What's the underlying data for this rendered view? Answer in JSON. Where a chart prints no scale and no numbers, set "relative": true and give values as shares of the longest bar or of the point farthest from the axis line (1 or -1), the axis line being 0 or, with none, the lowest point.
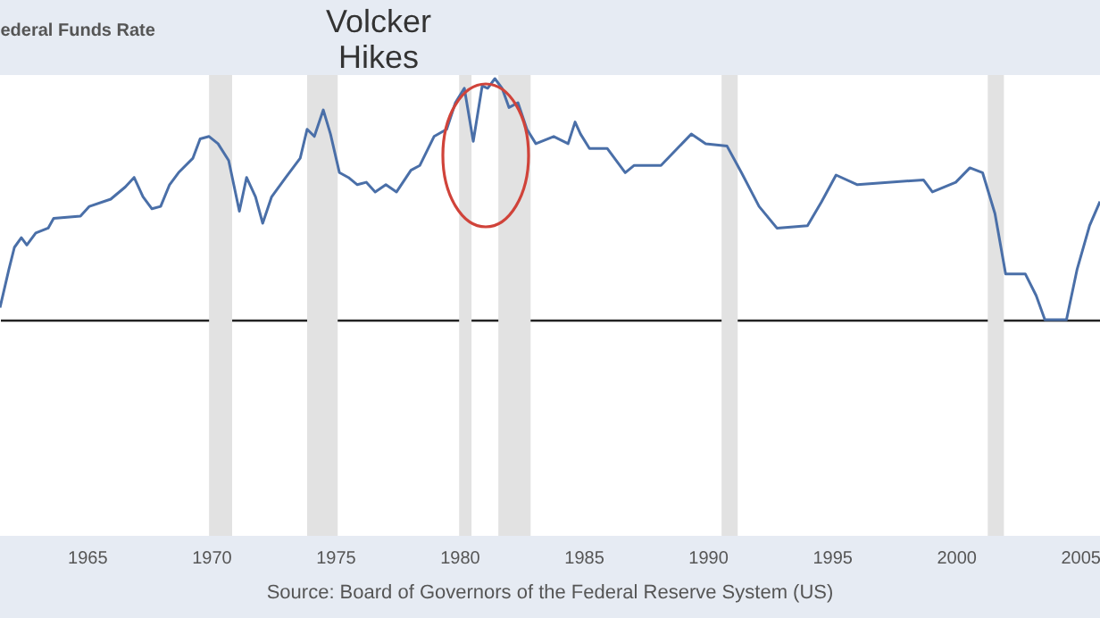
{
  "chart_data": {
    "type": "line",
    "title": "ederal Funds Rate",
    "relative": true,
    "x": [
      1961.5,
      1961.86,
      1962.08,
      1962.36,
      1962.58,
      1962.94,
      1963.44,
      1963.66,
      1964.74,
      1965.1,
      1965.96,
      1966.54,
      1966.9,
      1967.26,
      1967.62,
      1967.97,
      1968.33,
      1968.69,
      1969.27,
      1969.56,
      1969.92,
      1970.28,
      1970.71,
      1971.14,
      1971.43,
      1971.79,
      1972.08,
      1972.44,
      1973.01,
      1973.59,
      1973.87,
      1974.16,
      1974.52,
      1974.81,
      1975.17,
      1975.53,
      1975.89,
      1976.25,
      1976.61,
      1977.04,
      1977.47,
      1978.05,
      1978.41,
      1978.98,
      1979.49,
      1979.84,
      1980.2,
      1980.56,
      1980.92,
      1981.14,
      1981.43,
      1981.72,
      1982.0,
      1982.36,
      1982.72,
      1983.08,
      1983.8,
      1984.38,
      1984.66,
      1984.88,
      1985.24,
      1985.96,
      1986.68,
      1987.04,
      1988.12,
      1989.34,
      1989.92,
      1990.78,
      1991.36,
      1992.07,
      1992.79,
      1994.02,
      1994.59,
      1995.17,
      1996.03,
      1998.69,
      1999.05,
      1999.99,
      2000.56,
      2001.07,
      2001.57,
      2002.0,
      2002.79,
      2003.23,
      2003.58,
      2004.45,
      2004.88,
      2005.38,
      2005.8
    ],
    "values": [
      0.05,
      0.21,
      0.3,
      0.34,
      0.31,
      0.36,
      0.38,
      0.42,
      0.43,
      0.47,
      0.5,
      0.55,
      0.59,
      0.51,
      0.46,
      0.47,
      0.56,
      0.61,
      0.67,
      0.75,
      0.76,
      0.73,
      0.66,
      0.45,
      0.59,
      0.51,
      0.4,
      0.51,
      0.59,
      0.67,
      0.79,
      0.76,
      0.87,
      0.77,
      0.61,
      0.59,
      0.56,
      0.57,
      0.53,
      0.56,
      0.53,
      0.62,
      0.64,
      0.76,
      0.79,
      0.9,
      0.96,
      0.74,
      0.97,
      0.96,
      1,
      0.96,
      0.88,
      0.9,
      0.79,
      0.73,
      0.76,
      0.73,
      0.82,
      0.77,
      0.71,
      0.71,
      0.61,
      0.64,
      0.64,
      0.77,
      0.73,
      0.72,
      0.61,
      0.47,
      0.38,
      0.39,
      0.49,
      0.6,
      0.56,
      0.58,
      0.53,
      0.57,
      0.63,
      0.61,
      0.44,
      0.19,
      0.19,
      0.1,
      0,
      0,
      0.21,
      0.39,
      0.49
    ],
    "color": "#4a6fa8",
    "xlim": [
      1961.5,
      2005.8
    ],
    "xticks": [
      1965,
      1970,
      1975,
      1980,
      1985,
      1990,
      1995,
      2000,
      2005
    ],
    "bands": [
      {
        "axis": "x",
        "from": 1969.92,
        "to": 1970.85,
        "color": "#e2e2e2"
      },
      {
        "axis": "x",
        "from": 1973.87,
        "to": 1975.1,
        "color": "#e2e2e2"
      },
      {
        "axis": "x",
        "from": 1979.99,
        "to": 1980.49,
        "color": "#e2e2e2"
      },
      {
        "axis": "x",
        "from": 1981.57,
        "to": 1982.87,
        "color": "#e2e2e2"
      },
      {
        "axis": "x",
        "from": 1990.56,
        "to": 1991.21,
        "color": "#e2e2e2"
      },
      {
        "axis": "x",
        "from": 2001.28,
        "to": 2001.93,
        "color": "#e2e2e2"
      }
    ],
    "annotations": [
      "Volcker Hikes",
      "Source: Board of Governors of the Federal Reserve System (US)"
    ]
  }
}
